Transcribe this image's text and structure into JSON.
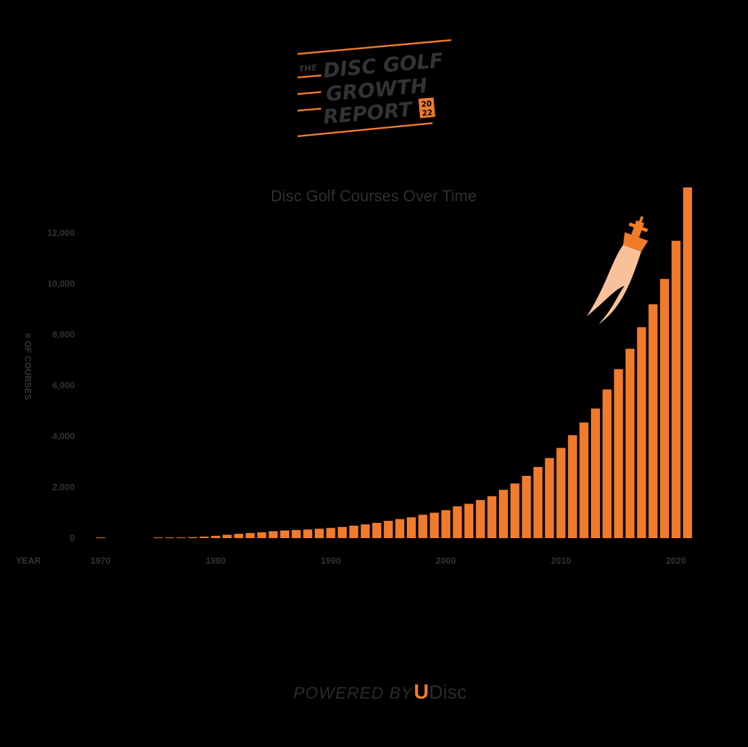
{
  "header": {
    "the": "THE",
    "line1": "DISC GOLF",
    "line2": "GROWTH",
    "line3": "REPORT",
    "year_top": "20",
    "year_bottom": "22",
    "accent": "#f07b2b",
    "text_color": "#333333"
  },
  "footer": {
    "powered_by": "POWERED BY",
    "brand_u": "U",
    "brand_rest": "Disc"
  },
  "chart_data": {
    "type": "bar",
    "title": "Disc Golf Courses Over Time",
    "ylabel": "# OF COURSES",
    "xlabel": "YEAR",
    "ylim": [
      0,
      13500
    ],
    "yticks": [
      0,
      2000,
      4000,
      6000,
      8000,
      10000,
      12000
    ],
    "ytick_labels": [
      "0",
      "2,000",
      "4,000",
      "6,000",
      "8,000",
      "10,000",
      "12,000"
    ],
    "xticks": [
      1970,
      1980,
      1990,
      2000,
      2010,
      2020
    ],
    "xtick_labels": [
      "1970",
      "1980",
      "1990",
      "2000",
      "2010",
      "2020"
    ],
    "bar_color": "#f07b2b",
    "decoration": "rocket-icon",
    "categories": [
      1970,
      1971,
      1972,
      1973,
      1974,
      1975,
      1976,
      1977,
      1978,
      1979,
      1980,
      1981,
      1982,
      1983,
      1984,
      1985,
      1986,
      1987,
      1988,
      1989,
      1990,
      1991,
      1992,
      1993,
      1994,
      1995,
      1996,
      1997,
      1998,
      1999,
      2000,
      2001,
      2002,
      2003,
      2004,
      2005,
      2006,
      2007,
      2008,
      2009,
      2010,
      2011,
      2012,
      2013,
      2014,
      2015,
      2016,
      2017,
      2018,
      2019,
      2020,
      2021
    ],
    "values": [
      1,
      0,
      0,
      0,
      0,
      5,
      10,
      20,
      40,
      60,
      90,
      130,
      170,
      200,
      230,
      270,
      300,
      320,
      340,
      370,
      400,
      440,
      490,
      540,
      600,
      680,
      750,
      820,
      920,
      1000,
      1100,
      1250,
      1350,
      1500,
      1650,
      1900,
      2150,
      2450,
      2800,
      3150,
      3550,
      4050,
      4550,
      5100,
      5850,
      6650,
      7450,
      8300,
      9200,
      10200,
      11700,
      13800
    ]
  }
}
